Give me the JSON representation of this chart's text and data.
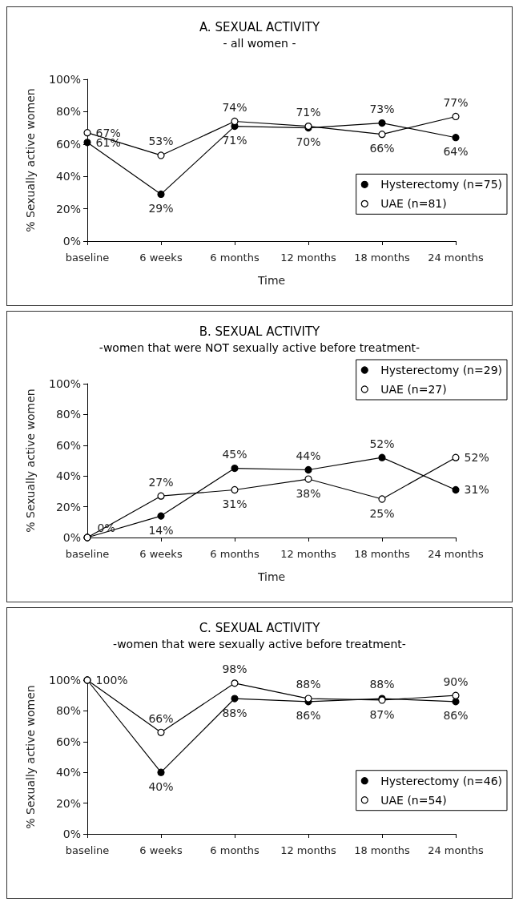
{
  "chart_data": [
    {
      "type": "line",
      "title": "A. SEXUAL ACTIVITY",
      "subtitle": "- all women -",
      "xlabel": "Time",
      "ylabel": "% Sexually active women",
      "categories": [
        "baseline",
        "6 weeks",
        "6 months",
        "12 months",
        "18 months",
        "24 months"
      ],
      "series": [
        {
          "name": "Hysterectomy (n=75)",
          "color": "#000000",
          "values": [
            61,
            29,
            71,
            70,
            73,
            64
          ],
          "value_labels": [
            "61%",
            "29%",
            "71%",
            "70%",
            "73%",
            "64%"
          ]
        },
        {
          "name": "UAE (n=81)",
          "color": "#000000",
          "values": [
            67,
            53,
            74,
            71,
            66,
            77
          ],
          "value_labels": [
            "67%",
            "53%",
            "74%",
            "71%",
            "66%",
            "77%"
          ]
        }
      ],
      "ylim": [
        0,
        100
      ],
      "yticks": [
        {
          "value": 0,
          "label": "0%"
        },
        {
          "value": 20,
          "label": "20%"
        },
        {
          "value": 40,
          "label": "40%"
        },
        {
          "value": 60,
          "label": "60%"
        },
        {
          "value": 80,
          "label": "80%"
        },
        {
          "value": 100,
          "label": "100%"
        }
      ],
      "grid": false,
      "legend": "bottom right",
      "marker": "circle",
      "line_style": "solid"
    },
    {
      "type": "line",
      "title": "B. SEXUAL ACTIVITY",
      "subtitle": "-women that were NOT sexually active before treatment-",
      "xlabel": "Time",
      "ylabel": "% Sexually active women",
      "categories": [
        "baseline",
        "6 weeks",
        "6 months",
        "12 months",
        "18 months",
        "24 months"
      ],
      "series": [
        {
          "name": "Hysterectomy (n=29)",
          "color": "#000000",
          "values": [
            0,
            14,
            45,
            44,
            52,
            31
          ],
          "value_labels": [
            null,
            "14%",
            "45%",
            "44%",
            "52%",
            "31%"
          ]
        },
        {
          "name": "UAE (n=27)",
          "color": "#000000",
          "values": [
            0,
            27,
            31,
            38,
            25,
            52
          ],
          "value_labels": [
            "0%",
            "27%",
            "31%",
            "38%",
            "25%",
            "52%"
          ]
        }
      ],
      "ylim": [
        0,
        100
      ],
      "yticks": [
        {
          "value": 0,
          "label": "0%"
        },
        {
          "value": 20,
          "label": "20%"
        },
        {
          "value": 40,
          "label": "40%"
        },
        {
          "value": 60,
          "label": "60%"
        },
        {
          "value": 80,
          "label": "80%"
        },
        {
          "value": 100,
          "label": "100%"
        }
      ],
      "grid": false,
      "legend": "top right",
      "marker": "circle",
      "line_style": "solid"
    },
    {
      "type": "line",
      "title": "C. SEXUAL ACTIVITY",
      "subtitle": "-women that were sexually active before treatment-",
      "ylabel": "% Sexually active women",
      "categories": [
        "baseline",
        "6 weeks",
        "6 months",
        "12 months",
        "18 months",
        "24 months"
      ],
      "series": [
        {
          "name": "Hysterectomy (n=46)",
          "color": "#000000",
          "values": [
            100,
            40,
            88,
            86,
            88,
            86
          ],
          "value_labels": [
            null,
            "40%",
            "88%",
            "86%",
            "88%",
            "86%"
          ]
        },
        {
          "name": "UAE (n=54)",
          "color": "#000000",
          "values": [
            100,
            66,
            98,
            88,
            87,
            90
          ],
          "value_labels": [
            "100%",
            "66%",
            "98%",
            "88%",
            "87%",
            "90%"
          ]
        }
      ],
      "ylim": [
        0,
        100
      ],
      "yticks": [
        {
          "value": 0,
          "label": "0%"
        },
        {
          "value": 20,
          "label": "20%"
        },
        {
          "value": 40,
          "label": "40%"
        },
        {
          "value": 60,
          "label": "60%"
        },
        {
          "value": 80,
          "label": "80%"
        },
        {
          "value": 100,
          "label": "100%"
        }
      ],
      "grid": false,
      "legend": "bottom right",
      "marker": "circle",
      "line_style": "solid"
    }
  ]
}
